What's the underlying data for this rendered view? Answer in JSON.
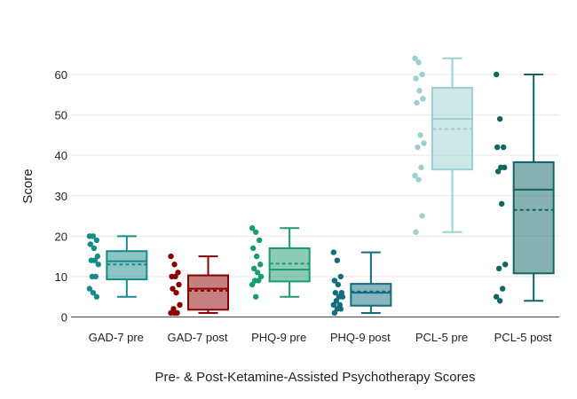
{
  "chart_data": {
    "type": "box",
    "title": "",
    "xlabel": "Pre- & Post-Ketamine-Assisted Psychotherapy Scores",
    "ylabel": "Score",
    "ylim": [
      0,
      70
    ],
    "yticks": [
      0,
      10,
      20,
      30,
      40,
      50,
      60
    ],
    "grid": true,
    "categories": [
      "GAD-7 pre",
      "GAD-7 post",
      "PHQ-9 pre",
      "PHQ-9 post",
      "PCL-5 pre",
      "PCL-5 post"
    ],
    "series": [
      {
        "category": "GAD-7 pre",
        "stroke": "#198a8a",
        "fill": "#198a8a",
        "point_color": "#198a8a",
        "min": 5,
        "q1": 9.3,
        "median": 13.8,
        "mean": 13.0,
        "q3": 16.3,
        "max": 20,
        "points": [
          20,
          20,
          19,
          18,
          17,
          15,
          14,
          14,
          13,
          10,
          10,
          7,
          6,
          5
        ]
      },
      {
        "category": "GAD-7 post",
        "stroke": "#8b0000",
        "fill": "#8b0000",
        "point_color": "#8b0000",
        "min": 1,
        "q1": 1.8,
        "median": 7.0,
        "mean": 6.5,
        "q3": 10.3,
        "max": 15,
        "points": [
          15,
          13,
          11,
          10,
          10,
          8,
          7,
          6,
          3,
          2,
          1,
          1,
          1
        ]
      },
      {
        "category": "PHQ-9 pre",
        "stroke": "#1a9a6e",
        "fill": "#1a9a6e",
        "point_color": "#1a9a6e",
        "min": 5,
        "q1": 8.8,
        "median": 11.7,
        "mean": 13.2,
        "q3": 17.0,
        "max": 22,
        "points": [
          22,
          21,
          19,
          17,
          15,
          13,
          12,
          11,
          10,
          9,
          9,
          8,
          5
        ]
      },
      {
        "category": "PHQ-9 post",
        "stroke": "#126d7e",
        "fill": "#126d7e",
        "point_color": "#126d7e",
        "min": 1,
        "q1": 2.8,
        "median": 6.0,
        "mean": 6.3,
        "q3": 8.2,
        "max": 16,
        "points": [
          16,
          14,
          10,
          9,
          8,
          6,
          6,
          5,
          5,
          4,
          3,
          3,
          2,
          2,
          1
        ]
      },
      {
        "category": "PCL-5 pre",
        "stroke": "#9dd0d0",
        "fill": "#9dd0d0",
        "point_color": "#9dd0d0",
        "min": 21,
        "q1": 36.5,
        "median": 49.0,
        "mean": 46.5,
        "q3": 56.7,
        "max": 64,
        "points": [
          64,
          63,
          60,
          59,
          56,
          54,
          53,
          45,
          43,
          42,
          37,
          35,
          34,
          25,
          21
        ]
      },
      {
        "category": "PCL-5 post",
        "stroke": "#0f6464",
        "fill": "#0f6464",
        "point_color": "#0f6464",
        "min": 4,
        "q1": 10.8,
        "median": 31.5,
        "mean": 26.5,
        "q3": 38.3,
        "max": 60,
        "points": [
          60,
          49,
          42,
          42,
          37,
          37,
          36,
          28,
          13,
          12,
          7,
          5,
          4
        ]
      }
    ]
  }
}
